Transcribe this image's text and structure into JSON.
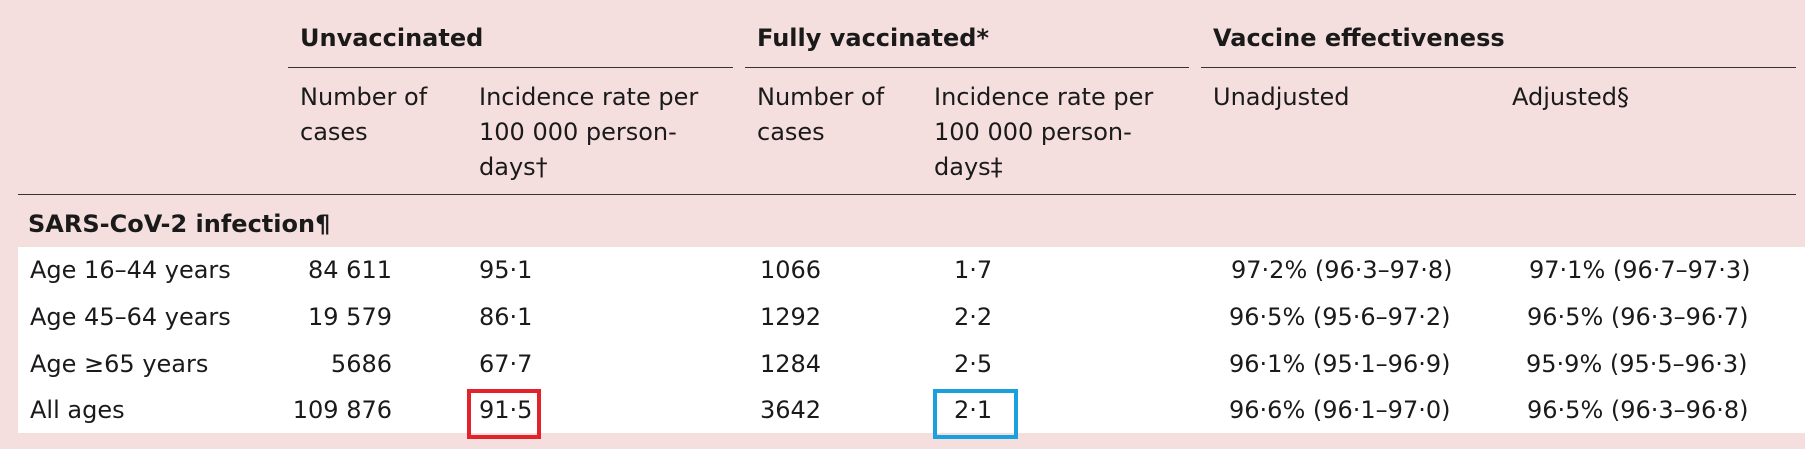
{
  "headers": {
    "groups": [
      "Unvaccinated",
      "Fully vaccinated*",
      "Vaccine effectiveness"
    ],
    "sub": [
      "Number of cases",
      "Incidence rate per 100 000 person-days†",
      "Number of cases",
      "Incidence rate per 100 000 person-days‡",
      "Unadjusted",
      "Adjusted§"
    ]
  },
  "section_title": "SARS-CoV-2 infection¶",
  "rows": [
    [
      "Age 16–44 years",
      "84 611",
      "95·1",
      "1066",
      "1·7",
      "97·2% (96·3–97·8)",
      "97·1% (96·7–97·3)"
    ],
    [
      "Age 45–64 years",
      "19 579",
      "86·1",
      "1292",
      "2·2",
      "96·5% (95·6–97·2)",
      "96·5% (96·3–96·7)"
    ],
    [
      "Age ≥65 years",
      "5686",
      "67·7",
      "1284",
      "2·5",
      "96·1% (95·1–96·9)",
      "95·9% (95·5–96·3)"
    ],
    [
      "All ages",
      "109 876",
      "91·5",
      "3642",
      "2·1",
      "96·6% (96·1–97·0)",
      "96·5% (96·3–96·8)"
    ]
  ],
  "highlights": {
    "red_cell": "91·5",
    "blue_cell": "2·1",
    "red_color": "#e3232b",
    "blue_color": "#1aa0dd"
  },
  "background_color": "#f5dede"
}
